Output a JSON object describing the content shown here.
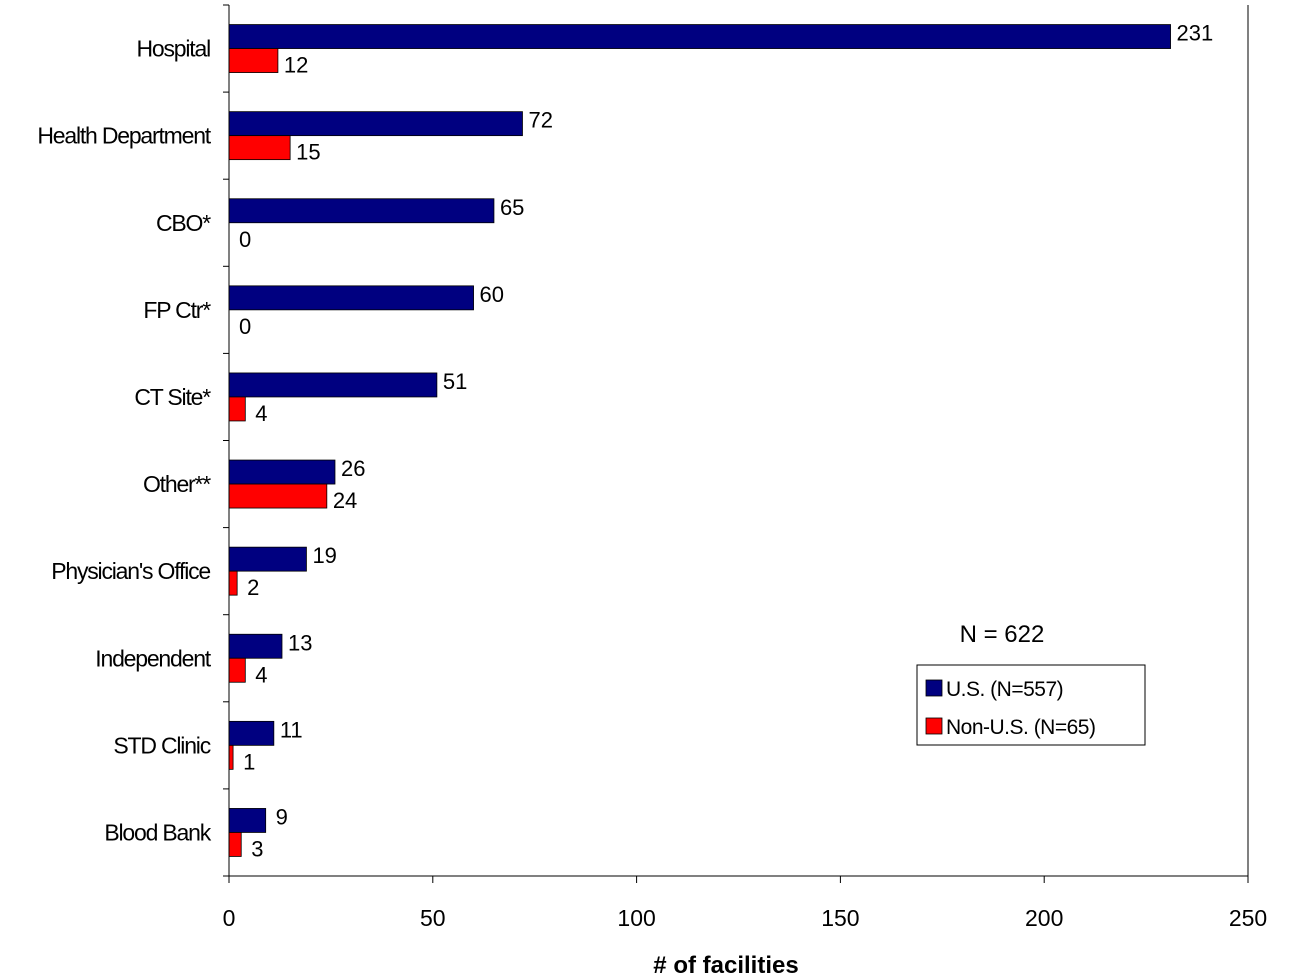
{
  "chart_data": {
    "type": "bar",
    "orientation": "horizontal",
    "categories": [
      "Hospital",
      "Health Department",
      "CBO*",
      "FP Ctr*",
      "CT Site*",
      "Other**",
      "Physician's Office",
      "Independent",
      "STD Clinic",
      "Blood Bank"
    ],
    "series": [
      {
        "name": "U.S. (N=557)",
        "color": "#000080",
        "values": [
          231,
          72,
          65,
          60,
          51,
          26,
          19,
          13,
          11,
          9
        ]
      },
      {
        "name": "Non-U.S. (N=65)",
        "color": "#ff0000",
        "values": [
          12,
          15,
          0,
          0,
          4,
          24,
          2,
          4,
          1,
          3
        ]
      }
    ],
    "xlabel": "# of facilities",
    "xlim": [
      0,
      250
    ],
    "xticks": [
      0,
      50,
      100,
      150,
      200,
      250
    ],
    "annotation": "N = 622",
    "legend_position": "bottom-right",
    "grid": false
  }
}
